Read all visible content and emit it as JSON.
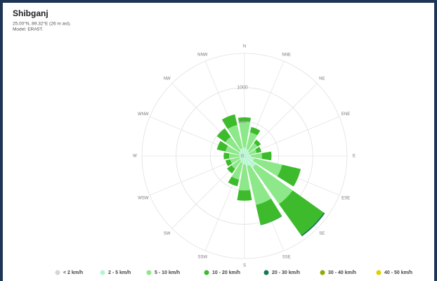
{
  "chart_data": {
    "type": "windrose",
    "title": "Shibganj",
    "subtitle": [
      "25.00°N, 89.32°E (26 m asl).",
      "Model: ERA5T."
    ],
    "categories": [
      "N",
      "NNE",
      "NE",
      "ENE",
      "E",
      "ESE",
      "SE",
      "SSE",
      "S",
      "SSW",
      "SW",
      "WSW",
      "W",
      "WNW",
      "NW",
      "NNW"
    ],
    "series": [
      {
        "name": "< 2 km/h",
        "color": "#d6d6d6",
        "values": [
          5,
          5,
          5,
          5,
          5,
          5,
          5,
          5,
          5,
          5,
          5,
          5,
          5,
          5,
          5,
          5
        ]
      },
      {
        "name": "2 - 5 km/h",
        "color": "#b4f5cf",
        "values": [
          120,
          100,
          80,
          70,
          90,
          140,
          200,
          150,
          120,
          100,
          80,
          70,
          70,
          80,
          90,
          110
        ]
      },
      {
        "name": "5 - 10 km/h",
        "color": "#8de88a",
        "values": [
          380,
          250,
          150,
          110,
          160,
          420,
          660,
          580,
          380,
          250,
          150,
          140,
          150,
          200,
          250,
          350
        ]
      },
      {
        "name": "10 - 20 km/h",
        "color": "#3dbb2c",
        "values": [
          60,
          80,
          60,
          70,
          140,
          280,
          560,
          300,
          150,
          100,
          80,
          70,
          80,
          130,
          150,
          160
        ]
      },
      {
        "name": "20 - 30 km/h",
        "color": "#137a4e",
        "values": [
          0,
          0,
          0,
          0,
          0,
          0,
          20,
          5,
          0,
          0,
          0,
          0,
          0,
          0,
          0,
          0
        ]
      },
      {
        "name": "30 - 40 km/h",
        "color": "#8faa00",
        "values": [
          0,
          0,
          0,
          0,
          0,
          0,
          0,
          0,
          0,
          0,
          0,
          0,
          0,
          0,
          0,
          0
        ]
      },
      {
        "name": "40 - 50 km/h",
        "color": "#e0d000",
        "values": [
          0,
          0,
          0,
          0,
          0,
          0,
          0,
          0,
          0,
          0,
          0,
          0,
          0,
          0,
          0,
          0
        ]
      }
    ],
    "rlim": [
      0,
      1500
    ],
    "rticks": [
      0,
      500,
      1000,
      1500
    ],
    "grid": true
  }
}
